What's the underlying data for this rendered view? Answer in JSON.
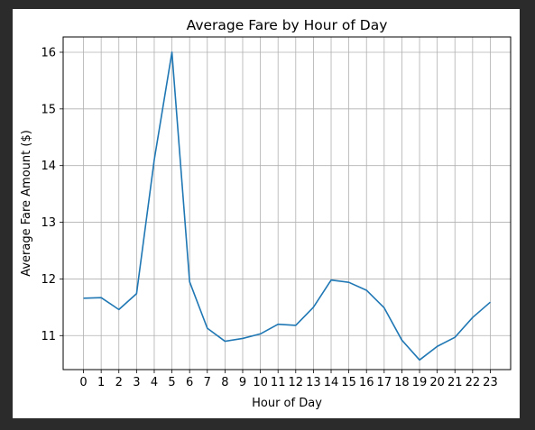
{
  "chart_data": {
    "type": "line",
    "title": "Average Fare by Hour of Day",
    "xlabel": "Hour of Day",
    "ylabel": "Average Fare Amount ($)",
    "x": [
      0,
      1,
      2,
      3,
      4,
      5,
      6,
      7,
      8,
      9,
      10,
      11,
      12,
      13,
      14,
      15,
      16,
      17,
      18,
      19,
      20,
      21,
      22,
      23
    ],
    "x_tick_labels": [
      "0",
      "1",
      "2",
      "3",
      "4",
      "5",
      "6",
      "7",
      "8",
      "9",
      "10",
      "11",
      "12",
      "13",
      "14",
      "15",
      "16",
      "17",
      "18",
      "19",
      "20",
      "21",
      "22",
      "23"
    ],
    "series": [
      {
        "values": [
          11.66,
          11.67,
          11.46,
          11.74,
          14.1,
          16.0,
          11.95,
          11.13,
          10.9,
          10.95,
          11.03,
          11.2,
          11.18,
          11.5,
          11.98,
          11.94,
          11.8,
          11.49,
          10.92,
          10.57,
          10.81,
          10.97,
          11.32,
          11.59
        ]
      }
    ],
    "xlim": [
      -1.15,
      24.15
    ],
    "ylim": [
      10.4,
      16.27
    ],
    "y_ticks": [
      11,
      12,
      13,
      14,
      15,
      16
    ],
    "y_tick_labels": [
      "11",
      "12",
      "13",
      "14",
      "15",
      "16"
    ],
    "grid": true,
    "line_color": "#1f77b4"
  }
}
